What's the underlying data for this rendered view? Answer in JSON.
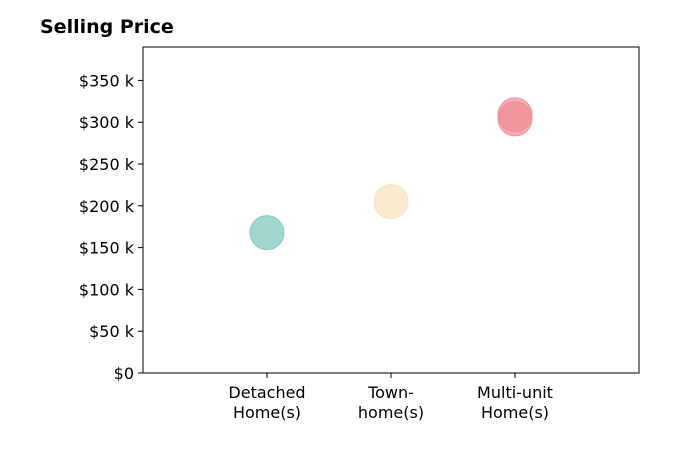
{
  "chart_data": {
    "type": "scatter",
    "title": "Selling Price",
    "xlabel": "",
    "ylabel": "",
    "categories": [
      [
        "Detached",
        "Home(s)"
      ],
      [
        "Town-",
        "home(s)"
      ],
      [
        "Multi-unit",
        "Home(s)"
      ]
    ],
    "xlim": [
      0,
      4
    ],
    "ylim": [
      0,
      390000
    ],
    "yticks": [
      0,
      50000,
      100000,
      150000,
      200000,
      250000,
      300000,
      350000
    ],
    "ytick_labels": [
      "$0",
      "$50 k",
      "$100 k",
      "$150 k",
      "$200 k",
      "$250 k",
      "$300 k",
      "$350 k"
    ],
    "points": [
      {
        "x": 1,
        "y": 168000,
        "color": "#7cc4bb"
      },
      {
        "x": 2,
        "y": 205000,
        "color": "#f5e2bb"
      },
      {
        "x": 3,
        "y": 309000,
        "color": "#f08a96"
      },
      {
        "x": 3,
        "y": 304000,
        "color": "#f08a96"
      }
    ],
    "grid": false,
    "legend": "none"
  }
}
